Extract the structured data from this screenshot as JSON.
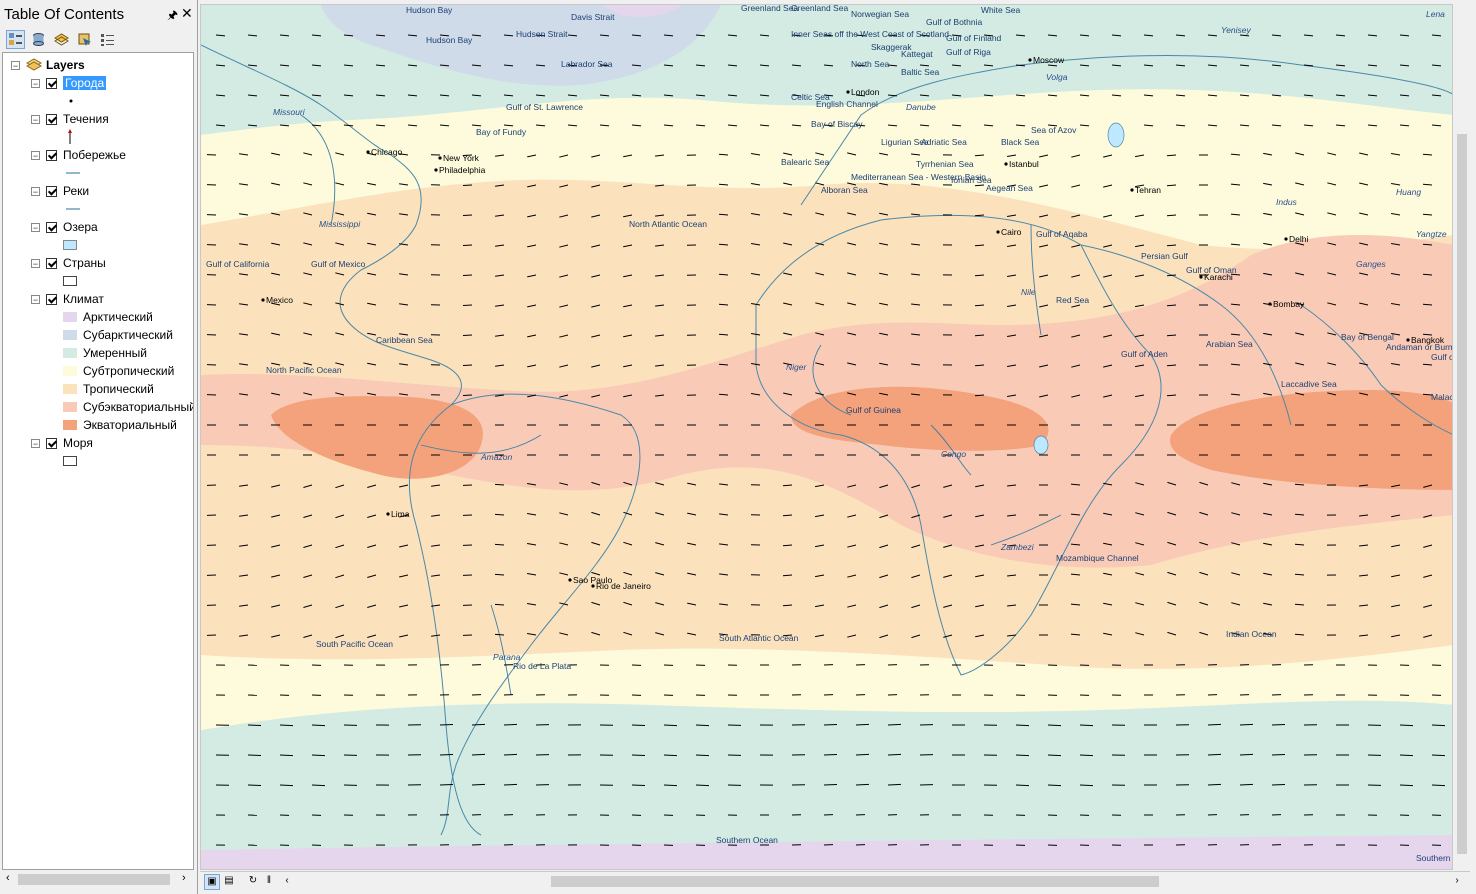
{
  "toc": {
    "title": "Table Of Contents",
    "pin_icon": "pin-icon",
    "close_icon": "close-icon",
    "root_label": "Layers",
    "layers": [
      {
        "label": "Города",
        "checked": true,
        "selected": true
      },
      {
        "label": "Течения",
        "checked": true
      },
      {
        "label": "Побережье",
        "checked": true
      },
      {
        "label": "Реки",
        "checked": true
      },
      {
        "label": "Озера",
        "checked": true
      },
      {
        "label": "Страны",
        "checked": true
      },
      {
        "label": "Климат",
        "checked": true
      },
      {
        "label": "Моря",
        "checked": true
      }
    ],
    "climate_classes": [
      {
        "label": "Арктический",
        "color": "#e5d6ee"
      },
      {
        "label": "Субарктический",
        "color": "#cfdbe9"
      },
      {
        "label": "Умеренный",
        "color": "#d3ebe2"
      },
      {
        "label": "Субтропический",
        "color": "#fdfbdc"
      },
      {
        "label": "Тропический",
        "color": "#fbe2bd"
      },
      {
        "label": "Субэкваториальный",
        "color": "#f9cbb7"
      },
      {
        "label": "Экваториальный",
        "color": "#f4a27b"
      }
    ],
    "lake_color": "#bee8ff",
    "line_color": "#4a88a8"
  },
  "map": {
    "ocean_labels": [
      "Hudson Bay",
      "Hudson Bay",
      "Davis Strait",
      "Labrador Sea",
      "Hudson Strait",
      "Greenland Sea",
      "Greenland Sea",
      "Norwegian Sea",
      "White Sea",
      "Gulf of Bothnia",
      "Gulf of Finland",
      "Gulf of Riga",
      "Inner Seas off the West Coast of Scotland",
      "North Sea",
      "Skaggerak",
      "Kattegat",
      "Baltic Sea",
      "Celtic Sea",
      "English Channel",
      "Bay of Biscay",
      "Gulf of St. Lawrence",
      "Bay of Fundy",
      "North Atlantic Ocean",
      "Balearic Sea",
      "Ligurian Sea",
      "Adriatic Sea",
      "Tyrrhenian Sea",
      "Mediterranean Sea - Western Basin",
      "Alboran Sea",
      "Ionian Sea",
      "Aegean Sea",
      "Black Sea",
      "Sea of Azov",
      "Gulf of California",
      "Gulf of Mexico",
      "Caribbean Sea",
      "North Pacific Ocean",
      "Red Sea",
      "Gulf of Aqaba",
      "Persian Gulf",
      "Gulf of Oman",
      "Gulf of Aden",
      "Arabian Sea",
      "Bay of Bengal",
      "Andaman or Burma Sea",
      "Gulf of Thailand",
      "Laccadive Sea",
      "Malacca Strait",
      "Gulf of Guinea",
      "Mozambique Channel",
      "South Pacific Ocean",
      "South Atlantic Ocean",
      "Indian Ocean",
      "Rio de La Plata",
      "Southern Ocean",
      "Southern Ocean"
    ],
    "cities": [
      "Chicago",
      "New York",
      "Philadelphia",
      "Mexico",
      "Lima",
      "Sao Paulo",
      "Rio de Janeiro",
      "London",
      "Moscow",
      "Istanbul",
      "Tehran",
      "Cairo",
      "Delhi",
      "Karachi",
      "Bombay",
      "Bangkok"
    ],
    "rivers": [
      "Missouri",
      "Mississippi",
      "Amazon",
      "Parana",
      "Niger",
      "Congo",
      "Nile",
      "Zambezi",
      "Danube",
      "Volga",
      "Yenisey",
      "Lena",
      "Huang",
      "Indus",
      "Ganges",
      "Yangtze"
    ]
  },
  "statusbar": {
    "layout_view_icon": "layout-view-icon",
    "data_view_icon": "data-view-icon",
    "refresh_icon": "refresh-icon",
    "pause_icon": "pause-icon"
  }
}
